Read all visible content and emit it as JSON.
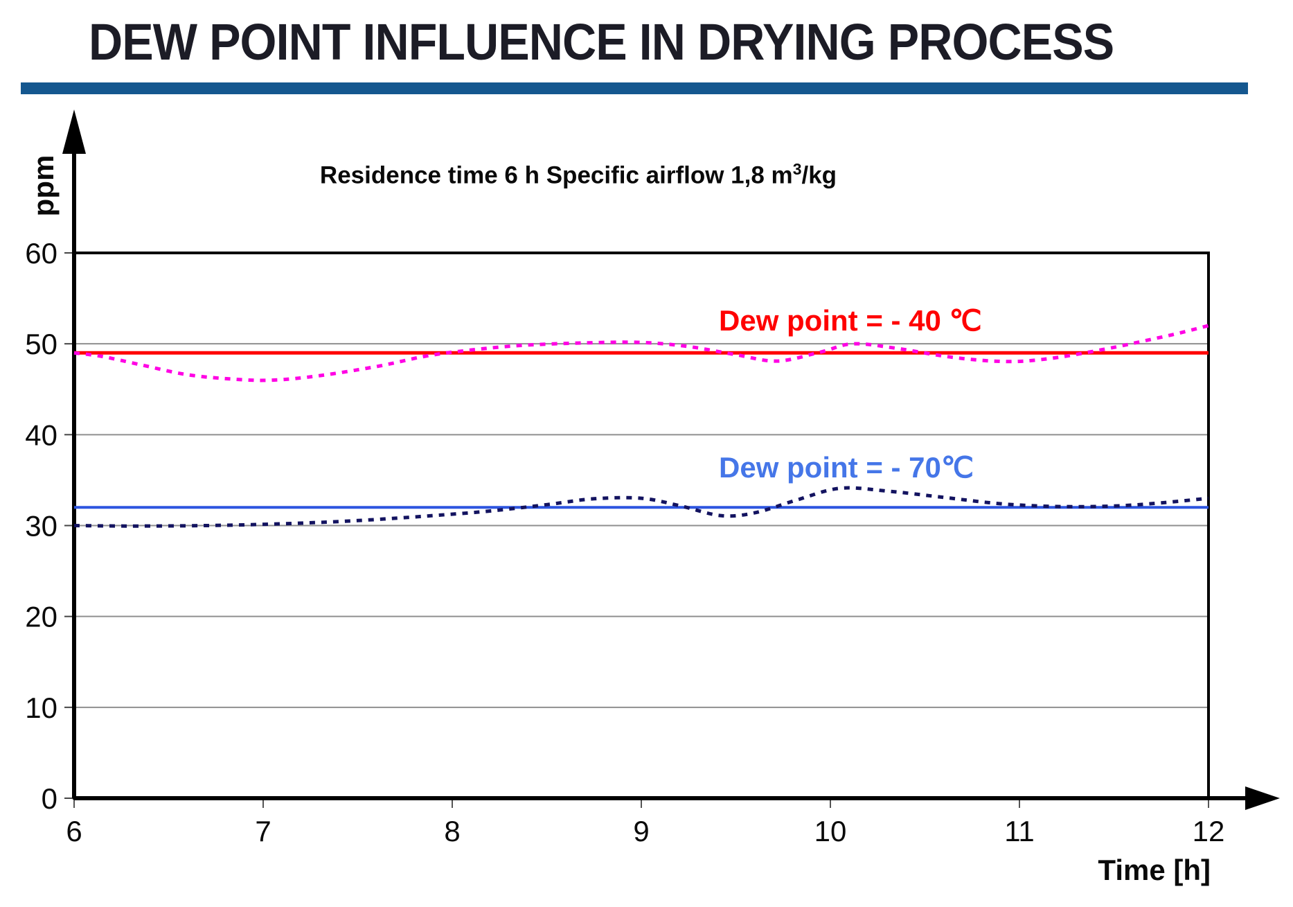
{
  "title": "DEW POINT INFLUENCE IN DRYING PROCESS",
  "subtitle": {
    "prefix": "Residence time 6 h Specific airflow 1,8 m",
    "sup": "3",
    "suffix": "/kg"
  },
  "axis": {
    "ylabel": "ppm",
    "xlabel": "Time [h]"
  },
  "annotations": {
    "red": {
      "text": "Dew point = - 40 ℃",
      "color": "#ff0000"
    },
    "blue": {
      "text": "Dew point = - 70℃",
      "color": "#4576e8"
    }
  },
  "colors": {
    "title_text": "#1c1c26",
    "title_rule": "#15578f",
    "axis": "#000000",
    "grid": "#8f8f8f",
    "tick_label": "#0a0a0a"
  },
  "chart_data": {
    "type": "line",
    "title": "DEW POINT INFLUENCE IN DRYING PROCESS",
    "subtitle": "Residence time 6 h Specific airflow 1,8 m³/kg",
    "xlabel": "Time [h]",
    "ylabel": "ppm",
    "xlim": [
      6,
      12
    ],
    "ylim": [
      0,
      60
    ],
    "x_ticks": [
      6,
      7,
      8,
      9,
      10,
      11,
      12
    ],
    "y_ticks": [
      0,
      10,
      20,
      30,
      40,
      50,
      60
    ],
    "grid": "horizontal gray lines at 10,20,30,40,50; black frame at 0 and 60",
    "legend_position": "none (colored text annotations inside plot)",
    "annotations": [
      {
        "text": "Dew point = - 40 ℃",
        "color": "#ff0000",
        "x": 9.4,
        "y": 54
      },
      {
        "text": "Dew point = - 70℃",
        "color": "#4576e8",
        "x": 9.4,
        "y": 37.8
      }
    ],
    "series": [
      {
        "name": "Dew point = - 40 ℃ (setpoint)",
        "style": "solid",
        "color": "#ff0000",
        "width": 5,
        "points": [
          [
            6,
            49
          ],
          [
            12,
            49
          ]
        ]
      },
      {
        "name": "Dew point = - 40 ℃ (measured, oscillating)",
        "style": "dashed",
        "color": "#ff00e4",
        "width": 5,
        "points": [
          [
            6,
            49
          ],
          [
            6.15,
            48.6
          ],
          [
            6.35,
            47.7
          ],
          [
            6.6,
            46.6
          ],
          [
            6.85,
            46.1
          ],
          [
            7.05,
            46
          ],
          [
            7.3,
            46.5
          ],
          [
            7.6,
            47.5
          ],
          [
            7.85,
            48.6
          ],
          [
            8.05,
            49.2
          ],
          [
            8.35,
            49.8
          ],
          [
            8.7,
            50.1
          ],
          [
            9,
            50.15
          ],
          [
            9.25,
            49.7
          ],
          [
            9.5,
            48.8
          ],
          [
            9.72,
            48.1
          ],
          [
            9.95,
            49.1
          ],
          [
            10.12,
            50
          ],
          [
            10.35,
            49.5
          ],
          [
            10.65,
            48.5
          ],
          [
            10.92,
            48.05
          ],
          [
            11.15,
            48.35
          ],
          [
            11.45,
            49.4
          ],
          [
            11.7,
            50.5
          ],
          [
            11.85,
            51.2
          ],
          [
            12,
            52
          ]
        ]
      },
      {
        "name": "Dew point = - 70℃ (setpoint)",
        "style": "solid",
        "color": "#2d55e0",
        "width": 4,
        "points": [
          [
            6,
            32
          ],
          [
            12,
            32
          ]
        ]
      },
      {
        "name": "Dew point = - 70℃ (measured, oscillating)",
        "style": "dashed",
        "color": "#131360",
        "width": 5,
        "points": [
          [
            6,
            30
          ],
          [
            6.3,
            29.95
          ],
          [
            6.7,
            30
          ],
          [
            7.1,
            30.2
          ],
          [
            7.5,
            30.55
          ],
          [
            7.9,
            31.1
          ],
          [
            8.2,
            31.6
          ],
          [
            8.5,
            32.3
          ],
          [
            8.75,
            32.95
          ],
          [
            9,
            33
          ],
          [
            9.2,
            32.2
          ],
          [
            9.42,
            31.1
          ],
          [
            9.6,
            31.4
          ],
          [
            9.82,
            32.8
          ],
          [
            10.05,
            34.1
          ],
          [
            10.3,
            33.8
          ],
          [
            10.6,
            33.1
          ],
          [
            10.9,
            32.4
          ],
          [
            11.2,
            32.1
          ],
          [
            11.5,
            32.15
          ],
          [
            11.75,
            32.5
          ],
          [
            12,
            33
          ]
        ]
      }
    ]
  }
}
